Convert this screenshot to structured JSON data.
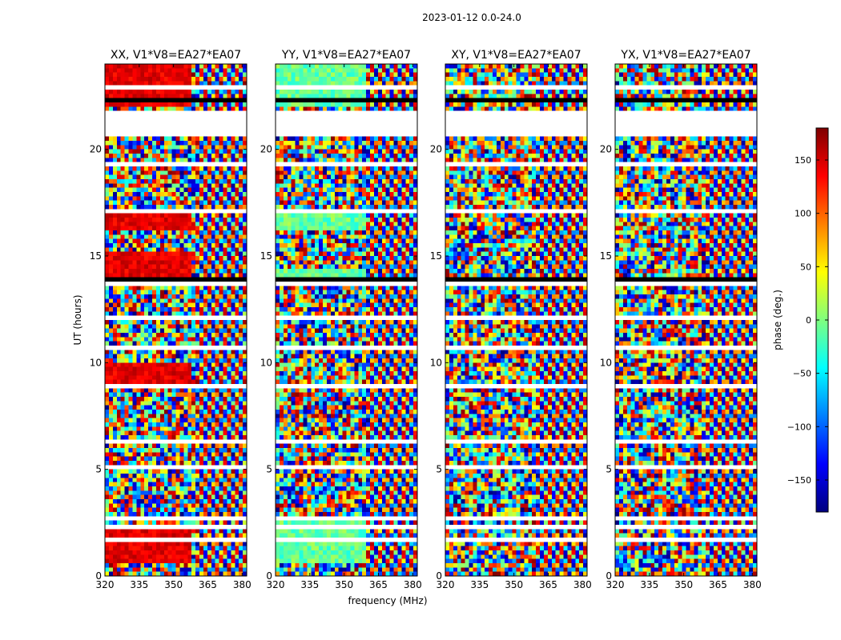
{
  "figure": {
    "suptitle": "2023-01-12 0.0-24.0"
  },
  "chart_data": {
    "type": "heatmap",
    "title": "2023-01-12 0.0-24.0",
    "xlabel": "frequency (MHz)",
    "ylabel": "UT (hours)",
    "xlim": [
      320,
      382
    ],
    "ylim": [
      0,
      24
    ],
    "xticks": [
      "320",
      "335",
      "350",
      "365",
      "380"
    ],
    "yticks": [
      "0",
      "5",
      "10",
      "15",
      "20"
    ],
    "colorbar": {
      "label": "phase (deg.)",
      "range": [
        -180,
        180
      ],
      "ticks": [
        "150",
        "100",
        "50",
        "0",
        "−50",
        "−100",
        "−150"
      ],
      "colormap": "jet"
    },
    "panels": [
      {
        "title": "XX, V1*V8=EA27*EA07",
        "polarization": "XX"
      },
      {
        "title": "YY, V1*V8=EA27*EA07",
        "polarization": "YY"
      },
      {
        "title": "XY, V1*V8=EA27*EA07",
        "polarization": "XY"
      },
      {
        "title": "YX, V1*V8=EA27*EA07",
        "polarization": "YX"
      }
    ],
    "flagged_ut_gaps_hours": [
      [
        0.4,
        0.5
      ],
      [
        1.35,
        1.45
      ],
      [
        1.65,
        1.75
      ],
      [
        2.3,
        2.5
      ],
      [
        2.65,
        2.75
      ],
      [
        3.3,
        3.4
      ],
      [
        4.1,
        4.3
      ],
      [
        5.1,
        5.2
      ],
      [
        6.2,
        6.3
      ],
      [
        7.1,
        7.2
      ],
      [
        8.8,
        8.95
      ],
      [
        9.9,
        10.0
      ],
      [
        10.7,
        10.8
      ],
      [
        11.2,
        11.3
      ],
      [
        12.0,
        12.2
      ],
      [
        13.6,
        13.75
      ],
      [
        14.4,
        14.5
      ],
      [
        15.2,
        15.3
      ],
      [
        15.9,
        16.0
      ],
      [
        17.1,
        17.2
      ],
      [
        18.2,
        18.3
      ],
      [
        19.3,
        19.4
      ],
      [
        20.4,
        20.5
      ],
      [
        20.7,
        21.1
      ],
      [
        21.1,
        21.9
      ],
      [
        22.9,
        23.1
      ]
    ]
  }
}
